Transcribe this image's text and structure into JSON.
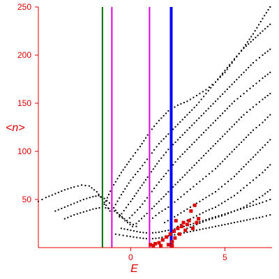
{
  "chart_data": {
    "type": "scatter",
    "xlabel": "E",
    "ylabel": "<n>",
    "xlim": [
      -4.9,
      7.5
    ],
    "ylim": [
      0,
      250
    ],
    "x_ticks": [
      0,
      5
    ],
    "x_tick_labels": [
      "0",
      "5"
    ],
    "y_ticks": [
      50,
      100,
      150,
      200,
      250
    ],
    "y_tick_labels": [
      "50",
      "100",
      "150",
      "200",
      "250"
    ],
    "grid": false,
    "colors": {
      "axis": "#e00000",
      "points": "#000000",
      "highlight": "#e00000"
    },
    "vertical_lines": [
      {
        "x": -1.5,
        "color": "#007000",
        "width": 2
      },
      {
        "x": -1.0,
        "color": "#e000e0",
        "width": 2
      },
      {
        "x": 1.0,
        "color": "#e000e0",
        "width": 2
      },
      {
        "x": 2.15,
        "color": "#0000ff",
        "width": 4
      }
    ],
    "series": [
      {
        "values": [
          [
            -4.9,
            48
          ],
          [
            -4.5,
            52
          ],
          [
            -4.0,
            56
          ],
          [
            -3.5,
            60
          ],
          [
            -3.0,
            63
          ],
          [
            -2.6,
            65
          ],
          [
            -2.2,
            64
          ],
          [
            -1.8,
            58
          ],
          [
            -1.5,
            50
          ],
          [
            -1.3,
            44
          ],
          [
            -1.1,
            38
          ]
        ]
      },
      {
        "values": [
          [
            -4.0,
            38
          ],
          [
            -3.5,
            42
          ],
          [
            -3.0,
            46
          ],
          [
            -2.5,
            50
          ],
          [
            -2.0,
            53
          ],
          [
            -1.7,
            54
          ],
          [
            -1.4,
            51
          ],
          [
            -1.0,
            44
          ],
          [
            -0.7,
            36
          ],
          [
            -0.3,
            28
          ],
          [
            0.1,
            22
          ]
        ]
      },
      {
        "values": [
          [
            -3.5,
            30
          ],
          [
            -3.0,
            34
          ],
          [
            -2.5,
            37
          ],
          [
            -2.0,
            40
          ],
          [
            -1.5,
            42
          ],
          [
            -1.0,
            40
          ],
          [
            -0.6,
            34
          ],
          [
            -0.2,
            28
          ],
          [
            0.3,
            22
          ]
        ]
      },
      {
        "values": [
          [
            -1.4,
            45
          ],
          [
            -1.0,
            62
          ],
          [
            -0.5,
            78
          ],
          [
            0.0,
            92
          ],
          [
            0.5,
            105
          ],
          [
            1.0,
            120
          ],
          [
            1.5,
            132
          ],
          [
            2.0,
            142
          ],
          [
            2.5,
            148
          ],
          [
            3.0,
            152
          ],
          [
            3.5,
            158
          ],
          [
            4.0,
            164
          ],
          [
            4.5,
            172
          ],
          [
            5.0,
            182
          ],
          [
            5.5,
            195
          ],
          [
            6.0,
            208
          ],
          [
            6.5,
            222
          ],
          [
            7.0,
            238
          ],
          [
            7.4,
            250
          ]
        ]
      },
      {
        "values": [
          [
            -1.0,
            38
          ],
          [
            -0.5,
            55
          ],
          [
            0.0,
            70
          ],
          [
            0.5,
            82
          ],
          [
            1.0,
            95
          ],
          [
            1.5,
            108
          ],
          [
            2.0,
            118
          ],
          [
            2.5,
            128
          ],
          [
            3.0,
            138
          ],
          [
            3.5,
            148
          ],
          [
            4.0,
            160
          ],
          [
            4.5,
            172
          ],
          [
            5.0,
            184
          ],
          [
            5.5,
            196
          ],
          [
            6.0,
            207
          ],
          [
            6.5,
            216
          ],
          [
            7.0,
            225
          ],
          [
            7.4,
            232
          ]
        ]
      },
      {
        "values": [
          [
            -0.6,
            32
          ],
          [
            0.0,
            48
          ],
          [
            0.5,
            62
          ],
          [
            1.0,
            76
          ],
          [
            1.5,
            90
          ],
          [
            2.0,
            102
          ],
          [
            2.5,
            112
          ],
          [
            3.0,
            122
          ],
          [
            3.5,
            132
          ],
          [
            4.0,
            142
          ],
          [
            4.5,
            152
          ],
          [
            5.0,
            162
          ],
          [
            5.5,
            172
          ],
          [
            6.0,
            182
          ],
          [
            6.5,
            192
          ],
          [
            7.0,
            200
          ],
          [
            7.4,
            206
          ]
        ]
      },
      {
        "values": [
          [
            -0.2,
            28
          ],
          [
            0.5,
            42
          ],
          [
            1.0,
            55
          ],
          [
            1.5,
            68
          ],
          [
            2.0,
            80
          ],
          [
            2.5,
            92
          ],
          [
            3.0,
            102
          ],
          [
            3.5,
            112
          ],
          [
            4.0,
            122
          ],
          [
            4.5,
            132
          ],
          [
            5.0,
            142
          ],
          [
            5.5,
            152
          ],
          [
            6.0,
            160
          ],
          [
            6.5,
            168
          ],
          [
            7.0,
            176
          ],
          [
            7.4,
            182
          ]
        ]
      },
      {
        "values": [
          [
            0.3,
            25
          ],
          [
            1.0,
            38
          ],
          [
            1.5,
            48
          ],
          [
            2.0,
            58
          ],
          [
            2.5,
            68
          ],
          [
            3.0,
            78
          ],
          [
            3.5,
            88
          ],
          [
            4.0,
            98
          ],
          [
            4.5,
            108
          ],
          [
            5.0,
            118
          ],
          [
            5.5,
            128
          ],
          [
            6.0,
            138
          ],
          [
            6.5,
            146
          ],
          [
            7.0,
            154
          ],
          [
            7.4,
            160
          ]
        ]
      },
      {
        "values": [
          [
            1.0,
            28
          ],
          [
            1.5,
            36
          ],
          [
            2.0,
            42
          ],
          [
            2.5,
            50
          ],
          [
            3.0,
            58
          ],
          [
            3.5,
            66
          ],
          [
            4.0,
            74
          ],
          [
            4.5,
            82
          ],
          [
            5.0,
            92
          ],
          [
            5.5,
            102
          ],
          [
            6.0,
            112
          ],
          [
            6.5,
            122
          ],
          [
            7.0,
            130
          ],
          [
            7.4,
            138
          ]
        ]
      },
      {
        "values": [
          [
            1.8,
            26
          ],
          [
            2.5,
            34
          ],
          [
            3.0,
            40
          ],
          [
            3.5,
            46
          ],
          [
            4.0,
            52
          ],
          [
            4.5,
            58
          ],
          [
            5.0,
            66
          ],
          [
            5.5,
            74
          ],
          [
            6.0,
            84
          ],
          [
            6.5,
            94
          ],
          [
            7.0,
            104
          ],
          [
            7.4,
            112
          ]
        ]
      },
      {
        "values": [
          [
            2.5,
            22
          ],
          [
            3.0,
            28
          ],
          [
            3.5,
            33
          ],
          [
            4.0,
            38
          ],
          [
            4.5,
            42
          ],
          [
            5.0,
            48
          ],
          [
            5.5,
            54
          ],
          [
            6.0,
            62
          ],
          [
            6.5,
            70
          ],
          [
            7.0,
            78
          ],
          [
            7.4,
            86
          ]
        ]
      },
      {
        "values": [
          [
            3.0,
            20
          ],
          [
            3.5,
            24
          ],
          [
            4.0,
            28
          ],
          [
            4.5,
            31
          ],
          [
            5.0,
            34
          ],
          [
            5.5,
            38
          ],
          [
            6.0,
            42
          ],
          [
            6.5,
            48
          ],
          [
            7.0,
            54
          ],
          [
            7.4,
            60
          ]
        ]
      },
      {
        "values": [
          [
            -0.8,
            14
          ],
          [
            -0.2,
            12
          ],
          [
            0.5,
            10
          ],
          [
            1.0,
            9
          ],
          [
            1.5,
            10
          ],
          [
            2.0,
            12
          ],
          [
            2.5,
            14
          ],
          [
            3.0,
            16
          ],
          [
            3.5,
            18
          ],
          [
            4.0,
            20
          ],
          [
            4.5,
            22
          ],
          [
            5.0,
            24
          ],
          [
            5.5,
            26
          ],
          [
            6.0,
            28
          ],
          [
            6.5,
            30
          ],
          [
            7.0,
            32
          ],
          [
            7.4,
            34
          ]
        ]
      },
      {
        "values": [
          [
            -0.5,
            20
          ],
          [
            0.0,
            18
          ],
          [
            0.5,
            16
          ],
          [
            1.0,
            15
          ],
          [
            1.5,
            16
          ],
          [
            2.0,
            18
          ],
          [
            2.5,
            20
          ],
          [
            3.0,
            23
          ],
          [
            3.5,
            26
          ],
          [
            4.0,
            29
          ],
          [
            4.5,
            32
          ],
          [
            5.0,
            35
          ],
          [
            5.5,
            38
          ],
          [
            6.0,
            41
          ],
          [
            6.5,
            44
          ],
          [
            7.0,
            47
          ],
          [
            7.4,
            50
          ]
        ]
      }
    ],
    "highlight_points": [
      [
        1.05,
        3
      ],
      [
        1.3,
        4
      ],
      [
        1.5,
        5
      ],
      [
        1.7,
        8
      ],
      [
        1.9,
        11
      ],
      [
        2.1,
        14
      ],
      [
        2.2,
        6
      ],
      [
        2.3,
        17
      ],
      [
        2.35,
        10
      ],
      [
        2.5,
        20
      ],
      [
        2.6,
        14
      ],
      [
        2.7,
        22
      ],
      [
        2.8,
        26
      ],
      [
        2.9,
        18
      ],
      [
        3.0,
        24
      ],
      [
        3.1,
        28
      ],
      [
        3.3,
        20
      ],
      [
        3.5,
        26
      ],
      [
        3.2,
        38
      ],
      [
        3.4,
        44
      ],
      [
        2.4,
        28
      ],
      [
        1.2,
        2
      ],
      [
        1.6,
        2
      ],
      [
        2.0,
        3
      ],
      [
        2.2,
        2
      ],
      [
        3.6,
        30
      ]
    ]
  }
}
